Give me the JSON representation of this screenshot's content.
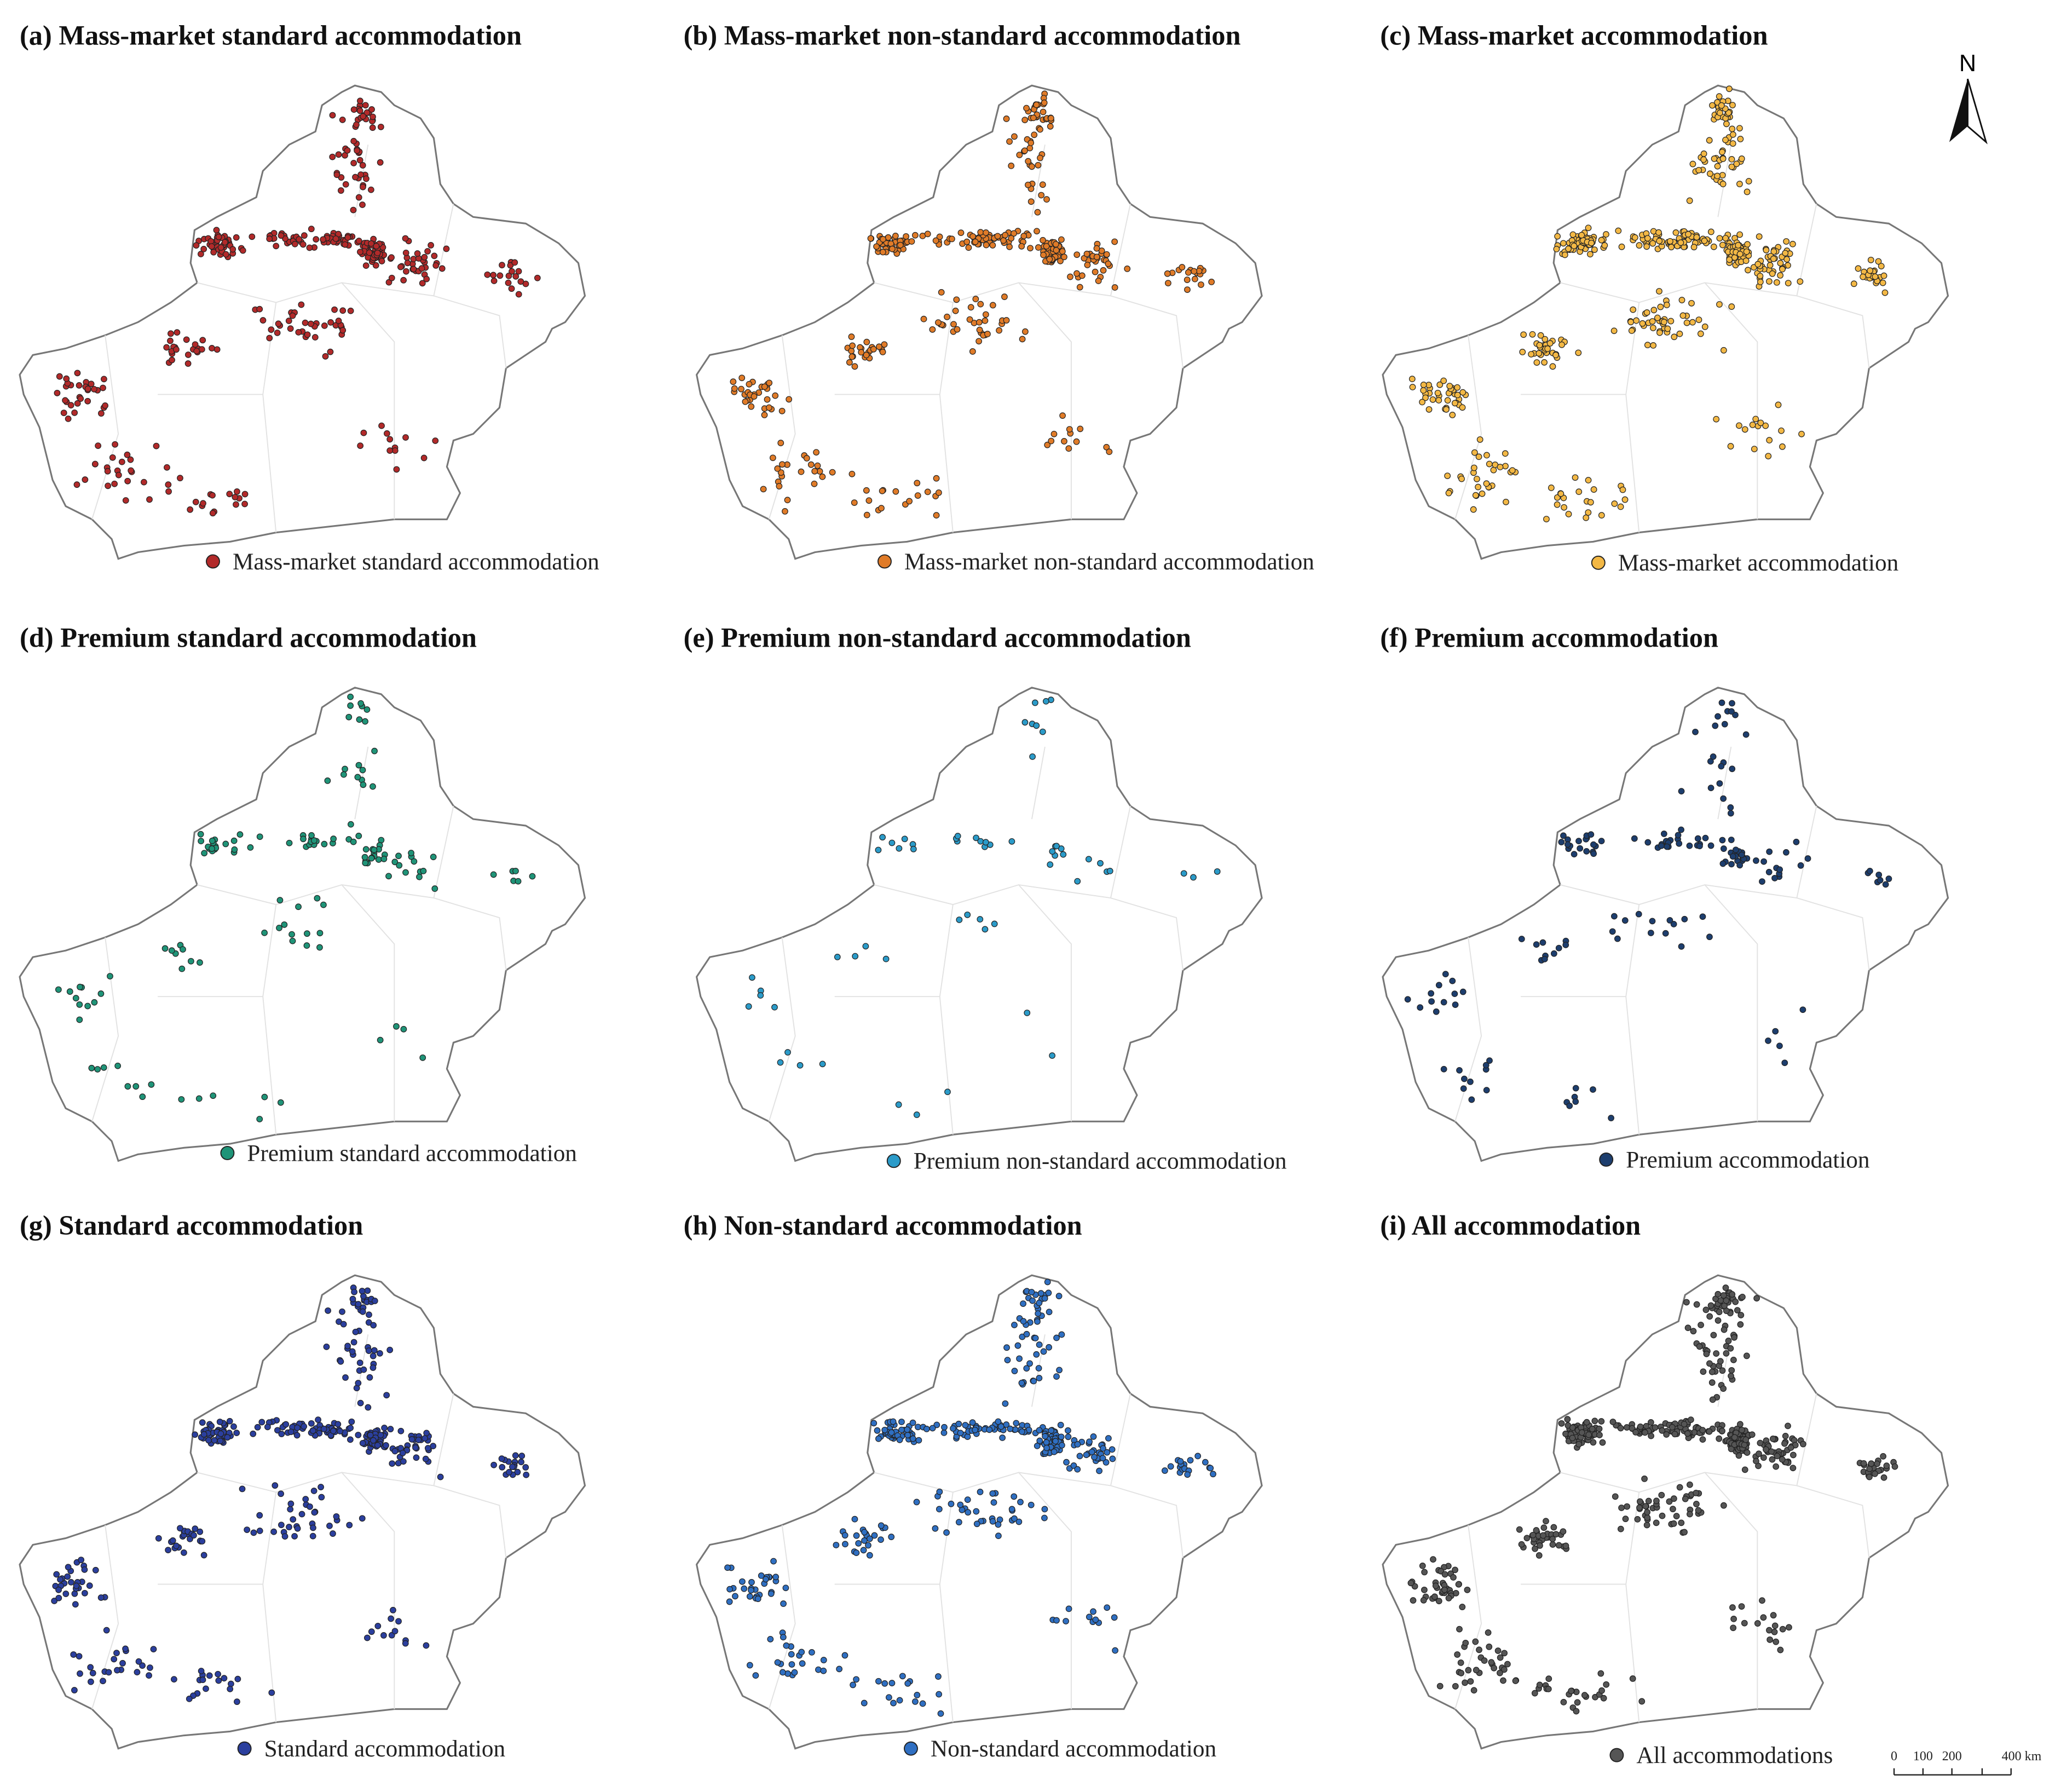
{
  "panels": [
    {
      "title": "(a) Mass-market standard accommodation",
      "legend": "Mass-market standard accommodation",
      "color": "#b22a2a"
    },
    {
      "title": "(b) Mass-market non-standard accommodation",
      "legend": "Mass-market non-standard accommodation",
      "color": "#e07b28"
    },
    {
      "title": "(c) Mass-market accommodation",
      "legend": "Mass-market accommodation",
      "color": "#f3b845"
    },
    {
      "title": "(d) Premium standard accommodation",
      "legend": "Premium standard accommodation",
      "color": "#1f9478"
    },
    {
      "title": "(e) Premium non-standard accommodation",
      "legend": "Premium non-standard accommodation",
      "color": "#2b9bc9"
    },
    {
      "title": "(f) Premium accommodation",
      "legend": "Premium accommodation",
      "color": "#1d3e6e"
    },
    {
      "title": "(g) Standard accommodation",
      "legend": "Standard accommodation",
      "color": "#2b3f9e"
    },
    {
      "title": "(h) Non-standard accommodation",
      "legend": "Non-standard accommodation",
      "color": "#2f6fc2"
    },
    {
      "title": "(i) All accommodation",
      "legend": "All accommodations",
      "color": "#555555"
    }
  ],
  "north_arrow": "N",
  "scale_bar": [
    "0",
    "100",
    "200",
    "400 km"
  ]
}
